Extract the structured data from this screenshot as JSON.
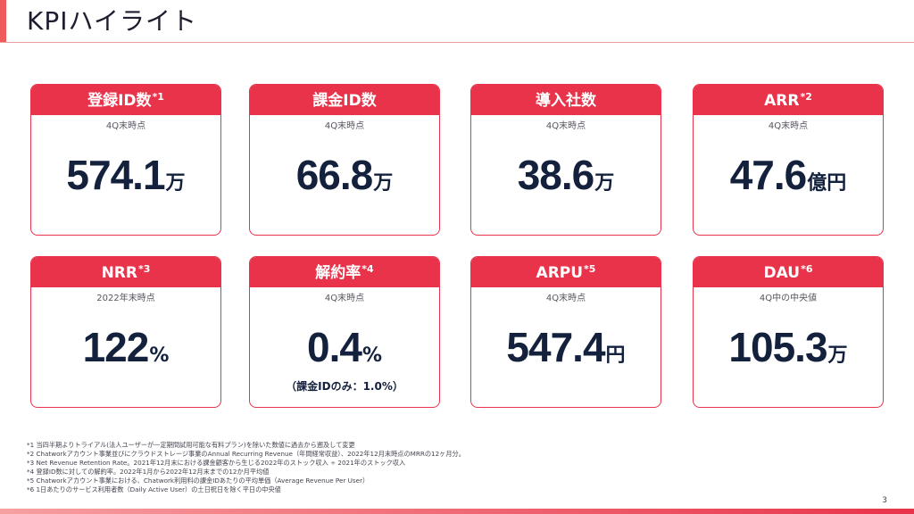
{
  "page": {
    "title": "KPIハイライト",
    "page_number": "3"
  },
  "colors": {
    "accent": "#e8334a",
    "value_text": "#14213d"
  },
  "kpis": [
    {
      "label": "登録ID数",
      "sup": "*1",
      "sub": "4Q末時点",
      "value": "574.1",
      "unit": "万",
      "note": ""
    },
    {
      "label": "課金ID数",
      "sup": "",
      "sub": "4Q末時点",
      "value": "66.8",
      "unit": "万",
      "note": ""
    },
    {
      "label": "導入社数",
      "sup": "",
      "sub": "4Q末時点",
      "value": "38.6",
      "unit": "万",
      "note": ""
    },
    {
      "label": "ARR",
      "sup": "*2",
      "sub": "4Q末時点",
      "value": "47.6",
      "unit": "億円",
      "note": ""
    },
    {
      "label": "NRR",
      "sup": "*3",
      "sub": "2022年末時点",
      "value": "122",
      "unit": "%",
      "note": ""
    },
    {
      "label": "解約率",
      "sup": "*4",
      "sub": "4Q末時点",
      "value": "0.4",
      "unit": "%",
      "note": "（課金IDのみ：1.0%）"
    },
    {
      "label": "ARPU",
      "sup": "*5",
      "sub": "4Q末時点",
      "value": "547.4",
      "unit": "円",
      "note": ""
    },
    {
      "label": "DAU",
      "sup": "*6",
      "sub": "4Q中の中央値",
      "value": "105.3",
      "unit": "万",
      "note": ""
    }
  ],
  "footnotes": [
    "*1 当四半期よりトライアル(法人ユーザーが一定期間試用可能な有料プラン)を除いた数値に過去から遡及して変更",
    "*2 Chatworkアカウント事業並びにクラウドストレージ事業のAnnual Recurring Revenue（年間経常収益）、2022年12月末時点のMRRの12ヶ月分。",
    "*3 Net Revenue Retention Rate。2021年12月末における課金顧客から生じる2022年のストック収入 ÷ 2021年のストック収入",
    "*4 登録ID数に対しての解約率。2022年1月から2022年12月末までの12か月平均値",
    "*5 Chatworkアカウント事業における、Chatwork利用料の課金IDあたりの平均単価（Average Revenue Per User）",
    "*6 1日あたりのサービス利用者数（Daily Active User）の土日祝日を除く平日の中央値"
  ]
}
